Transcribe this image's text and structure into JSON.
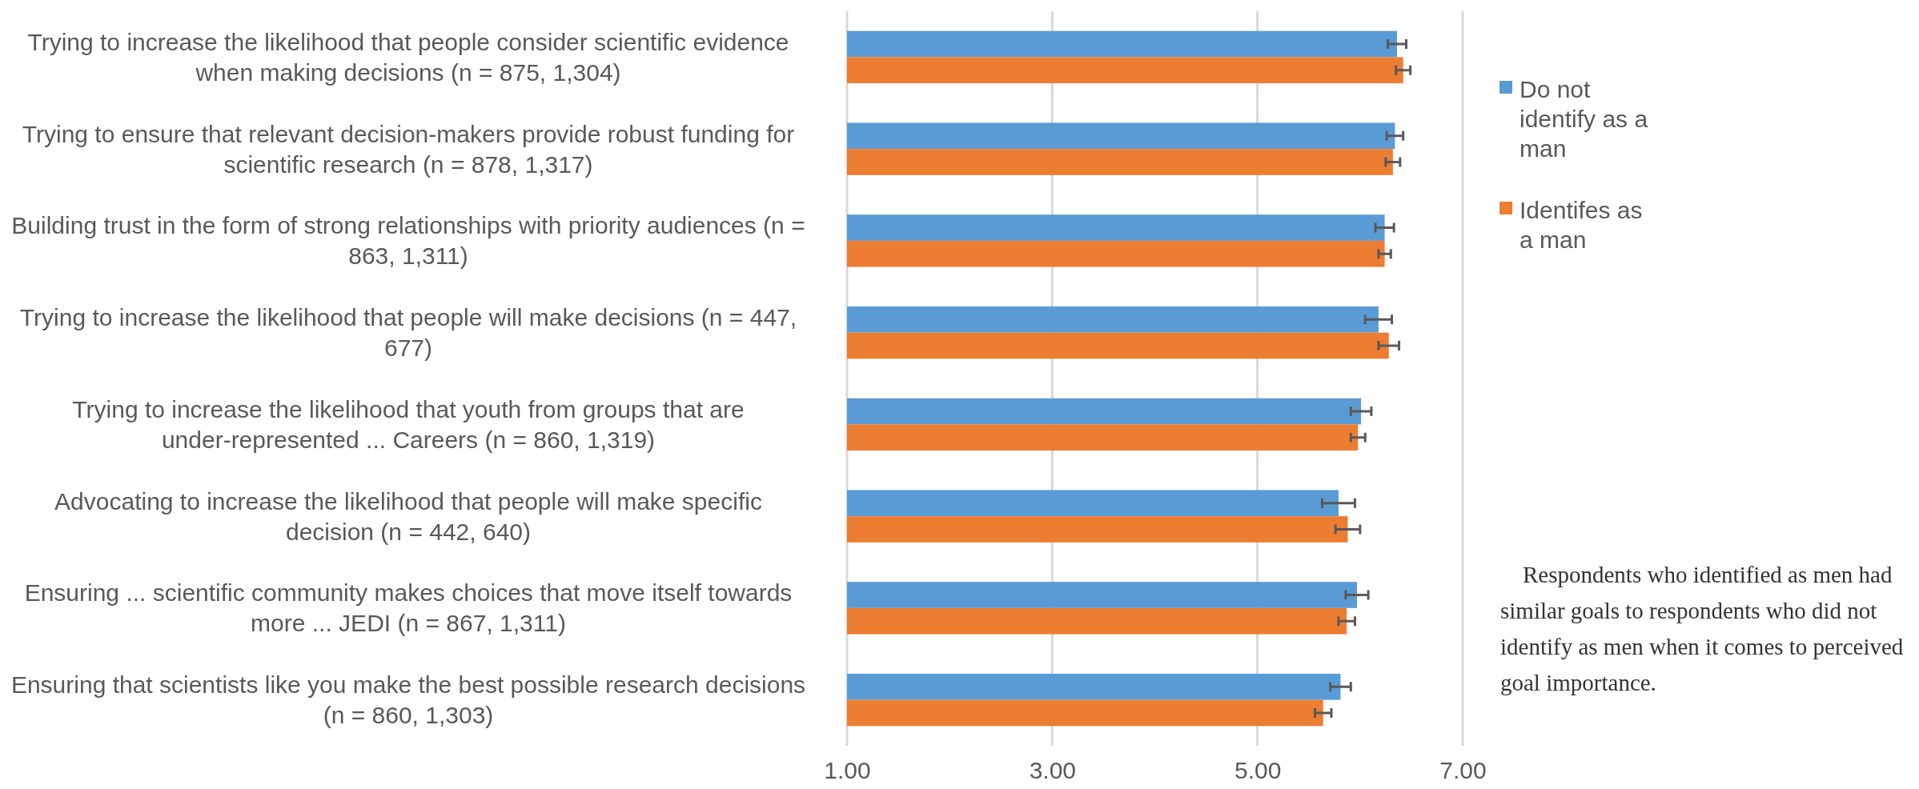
{
  "chart_data": {
    "type": "bar",
    "orientation": "horizontal",
    "categories": [
      "Trying to increase the likelihood that people consider scientific evidence when making decisions (n = 875, 1,304)",
      "Trying to ensure that relevant decision-makers provide robust funding for scientific research (n = 878, 1,317)",
      "Building trust in the form of strong relationships with priority audiences (n = 863, 1,311)",
      "Trying to increase the likelihood that people will make decisions (n = 447, 677)",
      "Trying to increase the likelihood that youth from groups that are under-represented ... Careers (n = 860, 1,319)",
      "Advocating to increase the likelihood that people will make specific decision (n = 442, 640)",
      "Ensuring ... scientific community makes choices that move itself towards more ... JEDI (n = 867, 1,311)",
      "Ensuring that scientists like you make the best possible research decisions (n = 860, 1,303)"
    ],
    "series": [
      {
        "name": "Do not identify as a man",
        "color": "#5b9bd5",
        "values": [
          6.36,
          6.34,
          6.24,
          6.18,
          6.01,
          5.79,
          5.97,
          5.81
        ],
        "errors": [
          0.09,
          0.08,
          0.09,
          0.13,
          0.1,
          0.16,
          0.11,
          0.1
        ]
      },
      {
        "name": "Identifes as a man",
        "color": "#ed7d31",
        "values": [
          6.42,
          6.32,
          6.24,
          6.28,
          5.98,
          5.88,
          5.87,
          5.64
        ],
        "errors": [
          0.07,
          0.07,
          0.06,
          0.1,
          0.07,
          0.12,
          0.08,
          0.08
        ]
      }
    ],
    "xlim": [
      1,
      7
    ],
    "xticks": [
      {
        "value": 1,
        "label": "1.00"
      },
      {
        "value": 3,
        "label": "3.00"
      },
      {
        "value": 5,
        "label": "5.00"
      },
      {
        "value": 7,
        "label": "7.00"
      }
    ],
    "grid": "x",
    "legend": "right",
    "annotations": [
      "Respondents who identified as men had similar goals to respondents who did not identify as men when it comes to perceived goal importance."
    ]
  }
}
